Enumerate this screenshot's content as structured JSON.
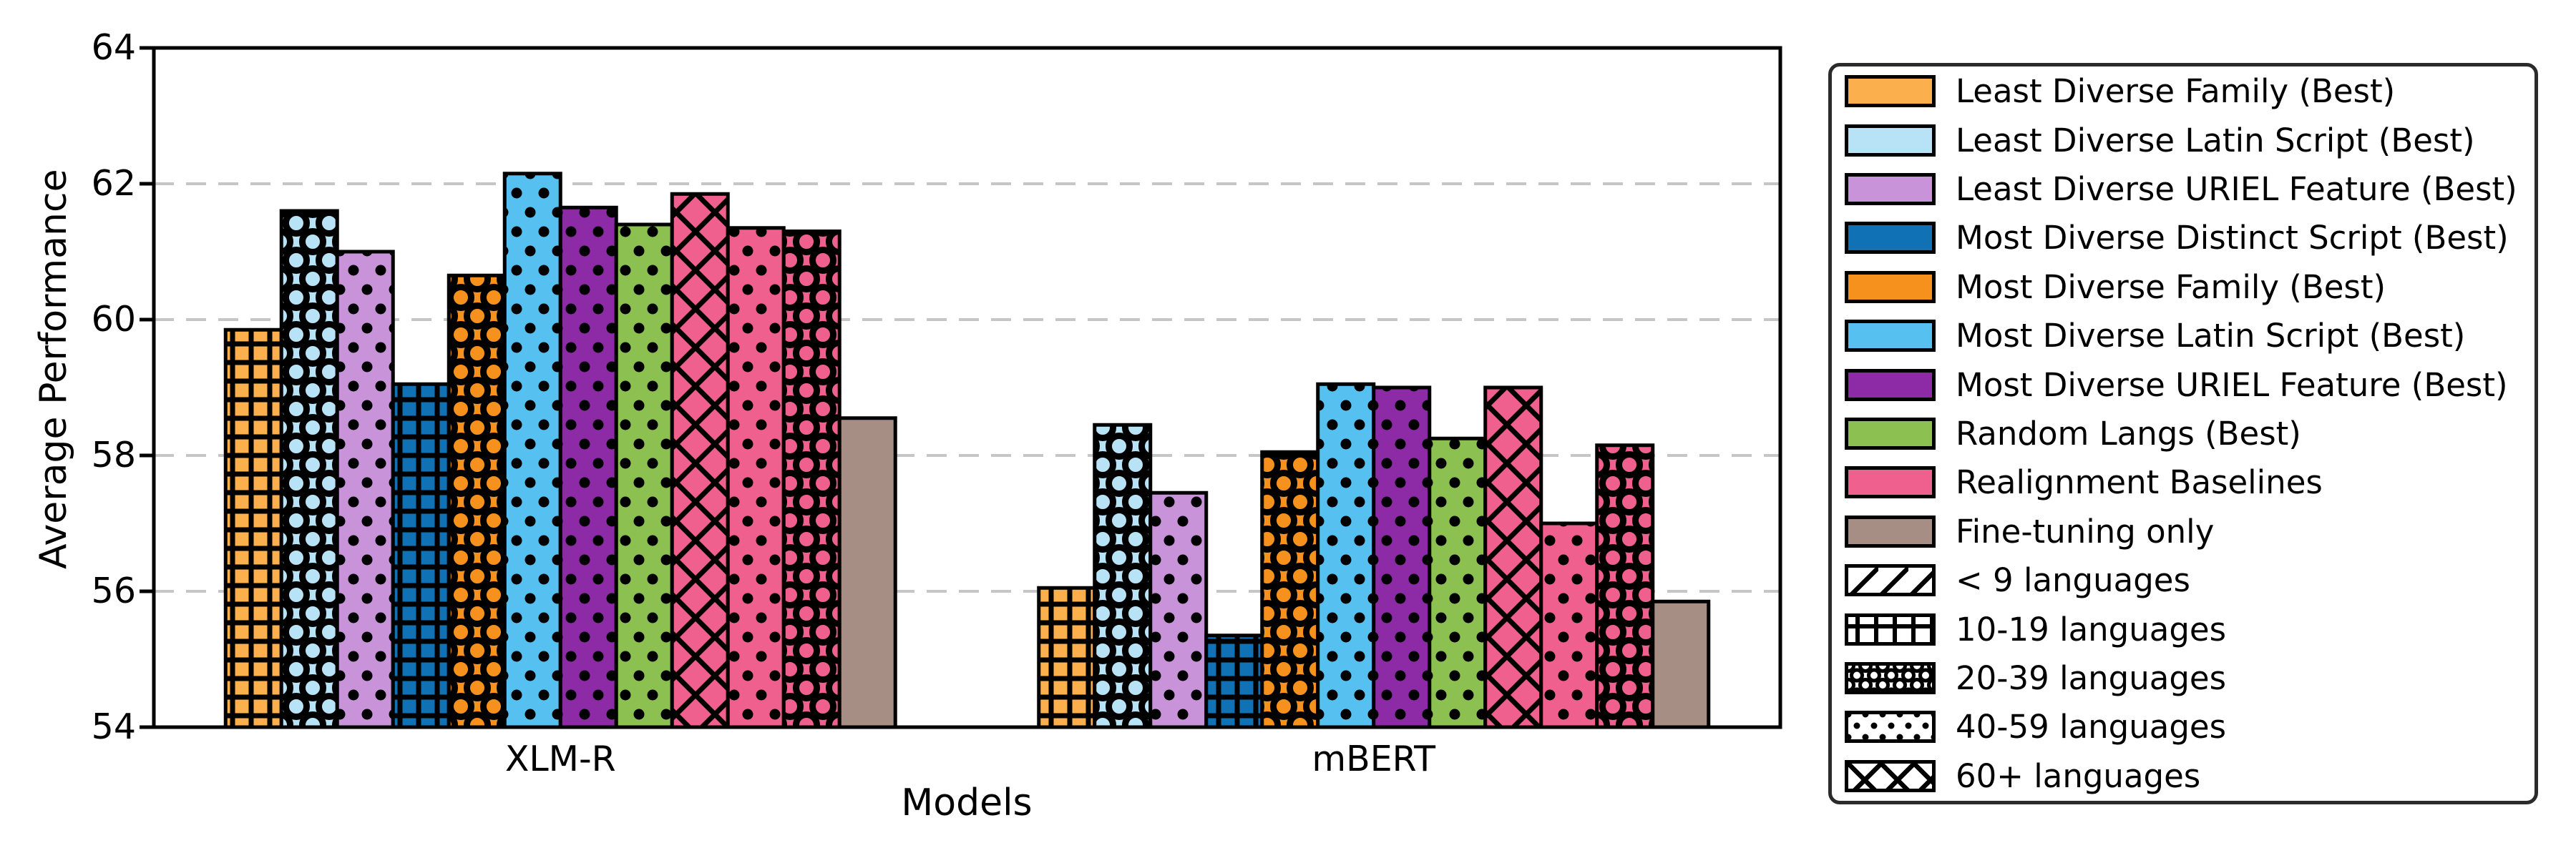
{
  "chart_data": {
    "type": "bar",
    "xlabel": "Models",
    "ylabel": "Average Performance",
    "ylim": [
      54,
      64
    ],
    "yticks": [
      54,
      56,
      58,
      60,
      62,
      64
    ],
    "gridlines_at": [
      56,
      58,
      60,
      62
    ],
    "grid_style": "dashed-horizontal",
    "legend_position": "outside-right",
    "groups": [
      "XLM-R",
      "mBERT"
    ],
    "series": [
      {
        "name": "Least Diverse Family (Best)",
        "color": "#FBB04D",
        "hatch": "grid",
        "values": [
          59.85,
          56.05
        ]
      },
      {
        "name": "Least Diverse Latin Script (Best)",
        "color": "#B8E2F6",
        "hatch": "circles",
        "values": [
          61.6,
          58.45
        ]
      },
      {
        "name": "Least Diverse URIEL Feature (Best)",
        "color": "#C893D9",
        "hatch": "dots",
        "values": [
          61.0,
          57.45
        ]
      },
      {
        "name": "Most Diverse Distinct Script (Best)",
        "color": "#1171B5",
        "hatch": "grid",
        "values": [
          59.05,
          55.35
        ]
      },
      {
        "name": "Most Diverse Family (Best)",
        "color": "#F7911D",
        "hatch": "circles",
        "values": [
          60.65,
          58.05
        ]
      },
      {
        "name": "Most Diverse Latin Script (Best)",
        "color": "#56C1F0",
        "hatch": "dots",
        "values": [
          62.15,
          59.05
        ]
      },
      {
        "name": "Most Diverse URIEL Feature (Best)",
        "color": "#8D2BA6",
        "hatch": "dots",
        "values": [
          61.65,
          59.0
        ]
      },
      {
        "name": "Random Langs (Best)",
        "color": "#8CC152",
        "hatch": "dots",
        "values": [
          61.4,
          58.25
        ]
      },
      {
        "name": "Realignment Baselines",
        "color": "#F0608F",
        "hatch": "cross",
        "values": [
          61.85,
          59.0
        ]
      },
      {
        "name": "Realignment Baselines",
        "color": "#F0608F",
        "hatch": "dots",
        "values": [
          61.35,
          57.0
        ]
      },
      {
        "name": "Realignment Baselines",
        "color": "#F0608F",
        "hatch": "circles",
        "values": [
          61.3,
          58.15
        ]
      },
      {
        "name": "Fine-tuning only",
        "color": "#A68E85",
        "hatch": "none",
        "values": [
          58.55,
          55.85
        ]
      }
    ],
    "legend": [
      {
        "label": "Least Diverse Family (Best)",
        "type": "color",
        "color": "#FBB04D"
      },
      {
        "label": "Least Diverse Latin Script (Best)",
        "type": "color",
        "color": "#B8E2F6"
      },
      {
        "label": "Least Diverse URIEL Feature (Best)",
        "type": "color",
        "color": "#C893D9"
      },
      {
        "label": "Most Diverse Distinct Script (Best)",
        "type": "color",
        "color": "#1171B5"
      },
      {
        "label": "Most Diverse Family (Best)",
        "type": "color",
        "color": "#F7911D"
      },
      {
        "label": "Most Diverse Latin Script (Best)",
        "type": "color",
        "color": "#56C1F0"
      },
      {
        "label": "Most Diverse URIEL Feature (Best)",
        "type": "color",
        "color": "#8D2BA6"
      },
      {
        "label": "Random Langs (Best)",
        "type": "color",
        "color": "#8CC152"
      },
      {
        "label": "Realignment Baselines",
        "type": "color",
        "color": "#F0608F"
      },
      {
        "label": "Fine-tuning only",
        "type": "color",
        "color": "#A68E85"
      },
      {
        "label": "< 9 languages",
        "type": "hatch",
        "hatch": "diag"
      },
      {
        "label": "10-19 languages",
        "type": "hatch",
        "hatch": "grid"
      },
      {
        "label": "20-39 languages",
        "type": "hatch",
        "hatch": "circles"
      },
      {
        "label": "40-59 languages",
        "type": "hatch",
        "hatch": "dots"
      },
      {
        "label": "60+ languages",
        "type": "hatch",
        "hatch": "cross"
      }
    ]
  }
}
